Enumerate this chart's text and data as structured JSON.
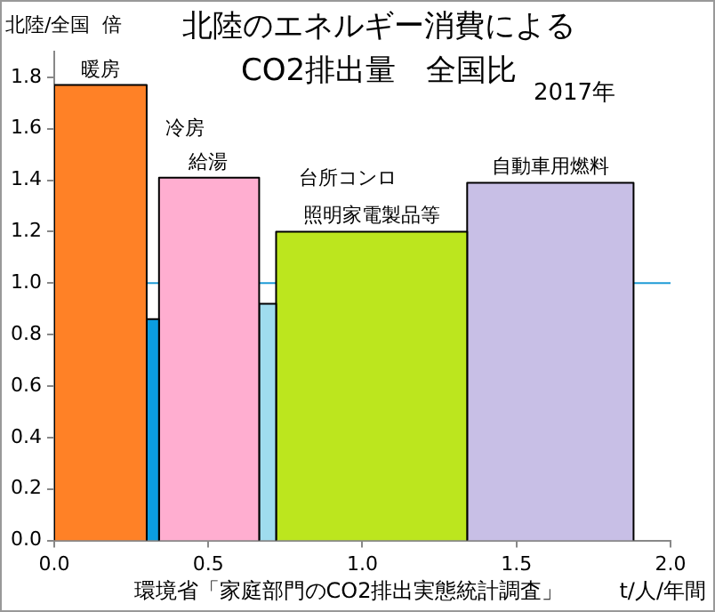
{
  "chart_data": {
    "type": "histogram",
    "title": "北陸のエネルギー消費による\nCO2排出量　全国比",
    "xlabel": "t/人/年間",
    "ylabel": "北陸/全国  倍",
    "bins": [
      0,
      0.3,
      0.34,
      0.665,
      0.72,
      1.34,
      1.88
    ],
    "values": [
      1.77,
      0.86,
      1.41,
      0.92,
      1.2,
      1.39
    ],
    "colors": [
      "#ff8126",
      "#0b9de0",
      "#ffaed0",
      "#9fdcee",
      "#bce61e",
      "#c8bfe6"
    ],
    "xlim": [
      0,
      2
    ],
    "xticks": [
      {
        "value": 0,
        "label": "0.0"
      },
      {
        "value": 0.5,
        "label": "0.5"
      },
      {
        "value": 1,
        "label": "1.0"
      },
      {
        "value": 1.5,
        "label": "1.5"
      },
      {
        "value": 2,
        "label": "2.0"
      }
    ],
    "ylim": [
      0,
      1.9
    ],
    "yticks": [
      {
        "value": 0,
        "label": "0.0"
      },
      0.2,
      0.4,
      0.6,
      0.8,
      {
        "value": 1,
        "label": "1.0"
      },
      1.2,
      1.4,
      1.6,
      1.8
    ],
    "ref_lines": [
      {
        "axis": "y",
        "value": 1,
        "color": "#1f9bd6"
      }
    ],
    "annotations": [
      "2017年",
      "環境省「家庭部門のCO2排出実態統計調査」",
      {
        "text": "暖房",
        "x": 0.15,
        "y": 1.79
      },
      "冷房",
      {
        "text": "給湯",
        "x": 0.5,
        "y": 1.43
      },
      "台所コンロ",
      {
        "text": "照明家電製品等",
        "x": 1.03,
        "y": 1.22
      },
      {
        "text": "自動車用燃料",
        "x": 1.61,
        "y": 1.41
      }
    ],
    "grid": false,
    "legend": false
  }
}
